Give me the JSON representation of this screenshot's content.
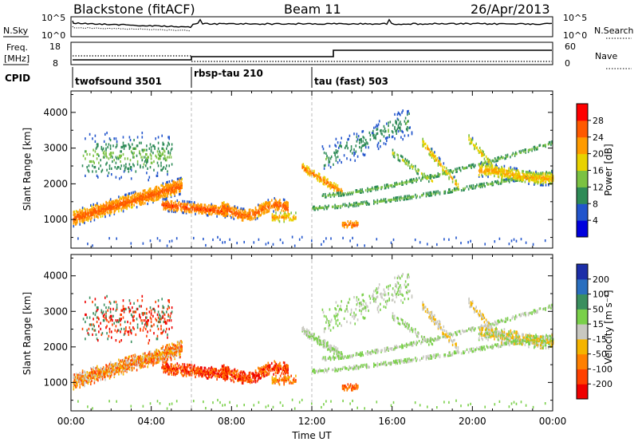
{
  "header": {
    "station": "Blackstone (fitACF)",
    "beam": "Beam 11",
    "date": "26/Apr/2013"
  },
  "noise_panel": {
    "left_label": "N.Sky",
    "right_label": "N.Search",
    "left_ticks": [
      "10^5",
      "10^0"
    ],
    "right_ticks": [
      "10^5",
      "10^0"
    ]
  },
  "freq_panel": {
    "left_label": "Freq.",
    "left_unit": "[MHz]",
    "left_ticks": [
      "18",
      "8"
    ],
    "right_label": "Nave",
    "right_ticks": [
      "60",
      "0"
    ]
  },
  "cpid": {
    "label": "CPID",
    "segments": [
      {
        "name": "twofsound 3501",
        "start_hour": 0
      },
      {
        "name": "rbsp-tau 210",
        "start_hour": 6
      },
      {
        "name": "tau (fast) 503",
        "start_hour": 12
      }
    ]
  },
  "chart_data": [
    {
      "type": "heatmap",
      "name": "power",
      "ylabel": "Slant Range [km]",
      "ylim": [
        200,
        4600
      ],
      "xlim": [
        0,
        24
      ],
      "y_ticks": [
        "1000",
        "2000",
        "3000",
        "4000"
      ],
      "colorbar": {
        "label": "Power [dB]",
        "tick_labels": [
          "4",
          "8",
          "12",
          "16",
          "20",
          "24",
          "28"
        ],
        "range": [
          0,
          32
        ],
        "colors": [
          "#0000dd",
          "#2255cc",
          "#2e8b57",
          "#7bc242",
          "#e8d200",
          "#ff9b00",
          "#ff5a00",
          "#ff0000"
        ]
      }
    },
    {
      "type": "heatmap",
      "name": "velocity",
      "ylabel": "Slant Range [km]",
      "ylim": [
        200,
        4600
      ],
      "xlim": [
        0,
        24
      ],
      "y_ticks": [
        "1000",
        "2000",
        "3000",
        "4000"
      ],
      "colorbar": {
        "label": "Velocity [m s⁻¹]",
        "tick_labels": [
          "200",
          "100",
          "50",
          "15",
          "-15",
          "-50",
          "-100",
          "-200"
        ],
        "colors": [
          "#1c2ea8",
          "#2a6fbf",
          "#3a8f5f",
          "#7ad04a",
          "#c8c8c0",
          "#f5b400",
          "#ff8000",
          "#ff4000",
          "#ee0000"
        ]
      }
    }
  ],
  "x_axis": {
    "label": "Time UT",
    "tick_labels": [
      "00:00",
      "04:00",
      "08:00",
      "12:00",
      "16:00",
      "20:00",
      "00:00"
    ]
  }
}
